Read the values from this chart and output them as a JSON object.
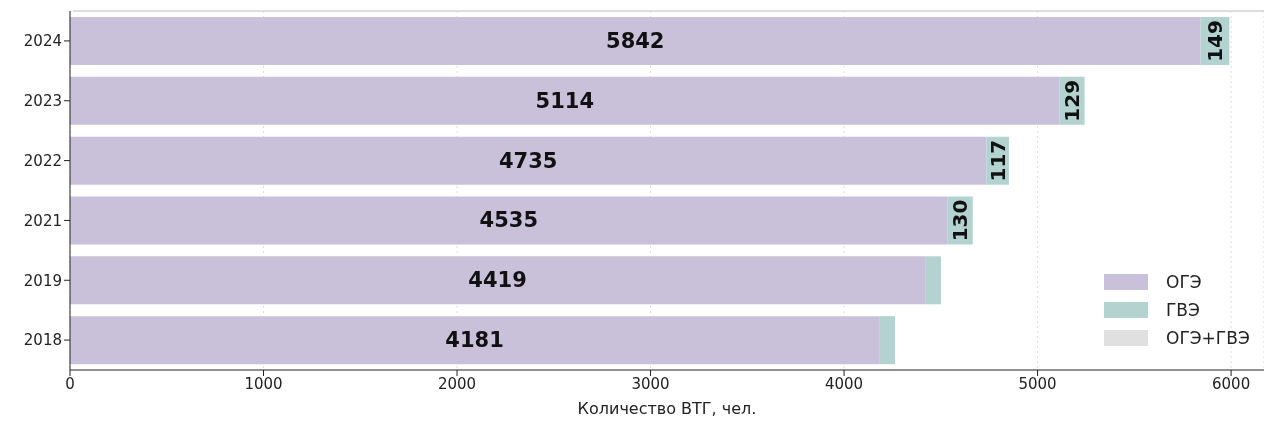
{
  "chart_data": {
    "type": "bar",
    "orientation": "horizontal",
    "stacked": true,
    "xlabel": "Количество ВТГ, чел.",
    "categories": [
      "2024",
      "2023",
      "2022",
      "2021",
      "2019",
      "2018"
    ],
    "series": [
      {
        "name": "ОГЭ",
        "color": "#c9c0d9",
        "values": [
          5842,
          5114,
          4735,
          4535,
          4419,
          4181
        ],
        "value_labels": [
          "5842",
          "5114",
          "4735",
          "4535",
          "4419",
          "4181"
        ]
      },
      {
        "name": "ГВЭ",
        "color": "#b2d3d0",
        "values": [
          149,
          129,
          117,
          130,
          82,
          82
        ],
        "value_labels": [
          "149",
          "129",
          "117",
          "130",
          null,
          null
        ]
      },
      {
        "name": "ОГЭ+ГВЭ",
        "color": "#e0e0e0",
        "values": [
          null,
          null,
          null,
          null,
          null,
          null
        ]
      }
    ],
    "xlim": [
      0,
      6170
    ],
    "xticks": [
      0,
      1000,
      2000,
      3000,
      4000,
      5000,
      6000
    ],
    "grid": "x",
    "legend": "bottom right"
  }
}
